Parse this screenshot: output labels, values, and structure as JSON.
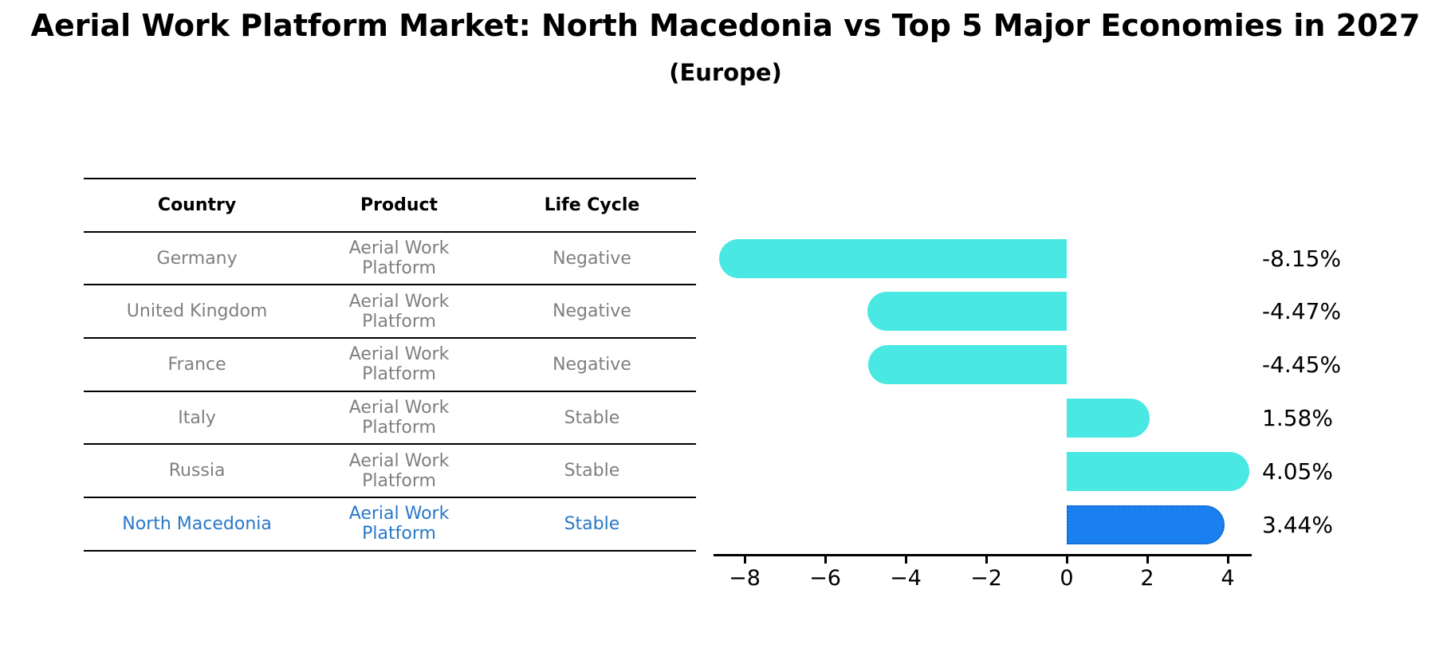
{
  "title": "Aerial Work Platform Market: North Macedonia vs Top 5 Major Economies in 2027",
  "subtitle": "(Europe)",
  "table": {
    "headers": [
      "Country",
      "Product",
      "Life Cycle"
    ],
    "rows": [
      {
        "country": "Germany",
        "product": "Aerial Work Platform",
        "life_cycle": "Negative",
        "highlight": false
      },
      {
        "country": "United Kingdom",
        "product": "Aerial Work Platform",
        "life_cycle": "Negative",
        "highlight": false
      },
      {
        "country": "France",
        "product": "Aerial Work Platform",
        "life_cycle": "Negative",
        "highlight": false
      },
      {
        "country": "Italy",
        "product": "Aerial Work Platform",
        "life_cycle": "Stable",
        "highlight": false
      },
      {
        "country": "Russia",
        "product": "Aerial Work Platform",
        "life_cycle": "Stable",
        "highlight": false
      },
      {
        "country": "North Macedonia",
        "product": "Aerial Work Platform",
        "life_cycle": "Stable",
        "highlight": true
      }
    ]
  },
  "chart_data": {
    "type": "bar",
    "orientation": "horizontal",
    "categories": [
      "Germany",
      "United Kingdom",
      "France",
      "Italy",
      "Russia",
      "North Macedonia"
    ],
    "values": [
      -8.15,
      -4.47,
      -4.45,
      1.58,
      4.05,
      3.44
    ],
    "value_labels": [
      "-8.15%",
      "-4.47%",
      "-4.45%",
      "1.58%",
      "4.05%",
      "3.44%"
    ],
    "highlight_index": 5,
    "x_ticks": [
      -8,
      -6,
      -4,
      -2,
      0,
      2,
      4
    ],
    "x_tick_labels": [
      "−8",
      "−6",
      "−4",
      "−2",
      "0",
      "2",
      "4"
    ],
    "xlim": [
      -8.8,
      4.6
    ],
    "grid": false,
    "legend": false,
    "bar_style": "rounded-cap",
    "colors": {
      "bar": "#4ae8e2",
      "highlight_bar": "#1a80f0",
      "highlight_border": "#1566c8",
      "axis": "#000000",
      "value_label_text": "#000000"
    }
  },
  "styles": {
    "background": "#ffffff",
    "table_line": "#000000",
    "table_text": "#7f7f7f",
    "table_header_text": "#000000",
    "highlight_text": "#2878c8"
  }
}
